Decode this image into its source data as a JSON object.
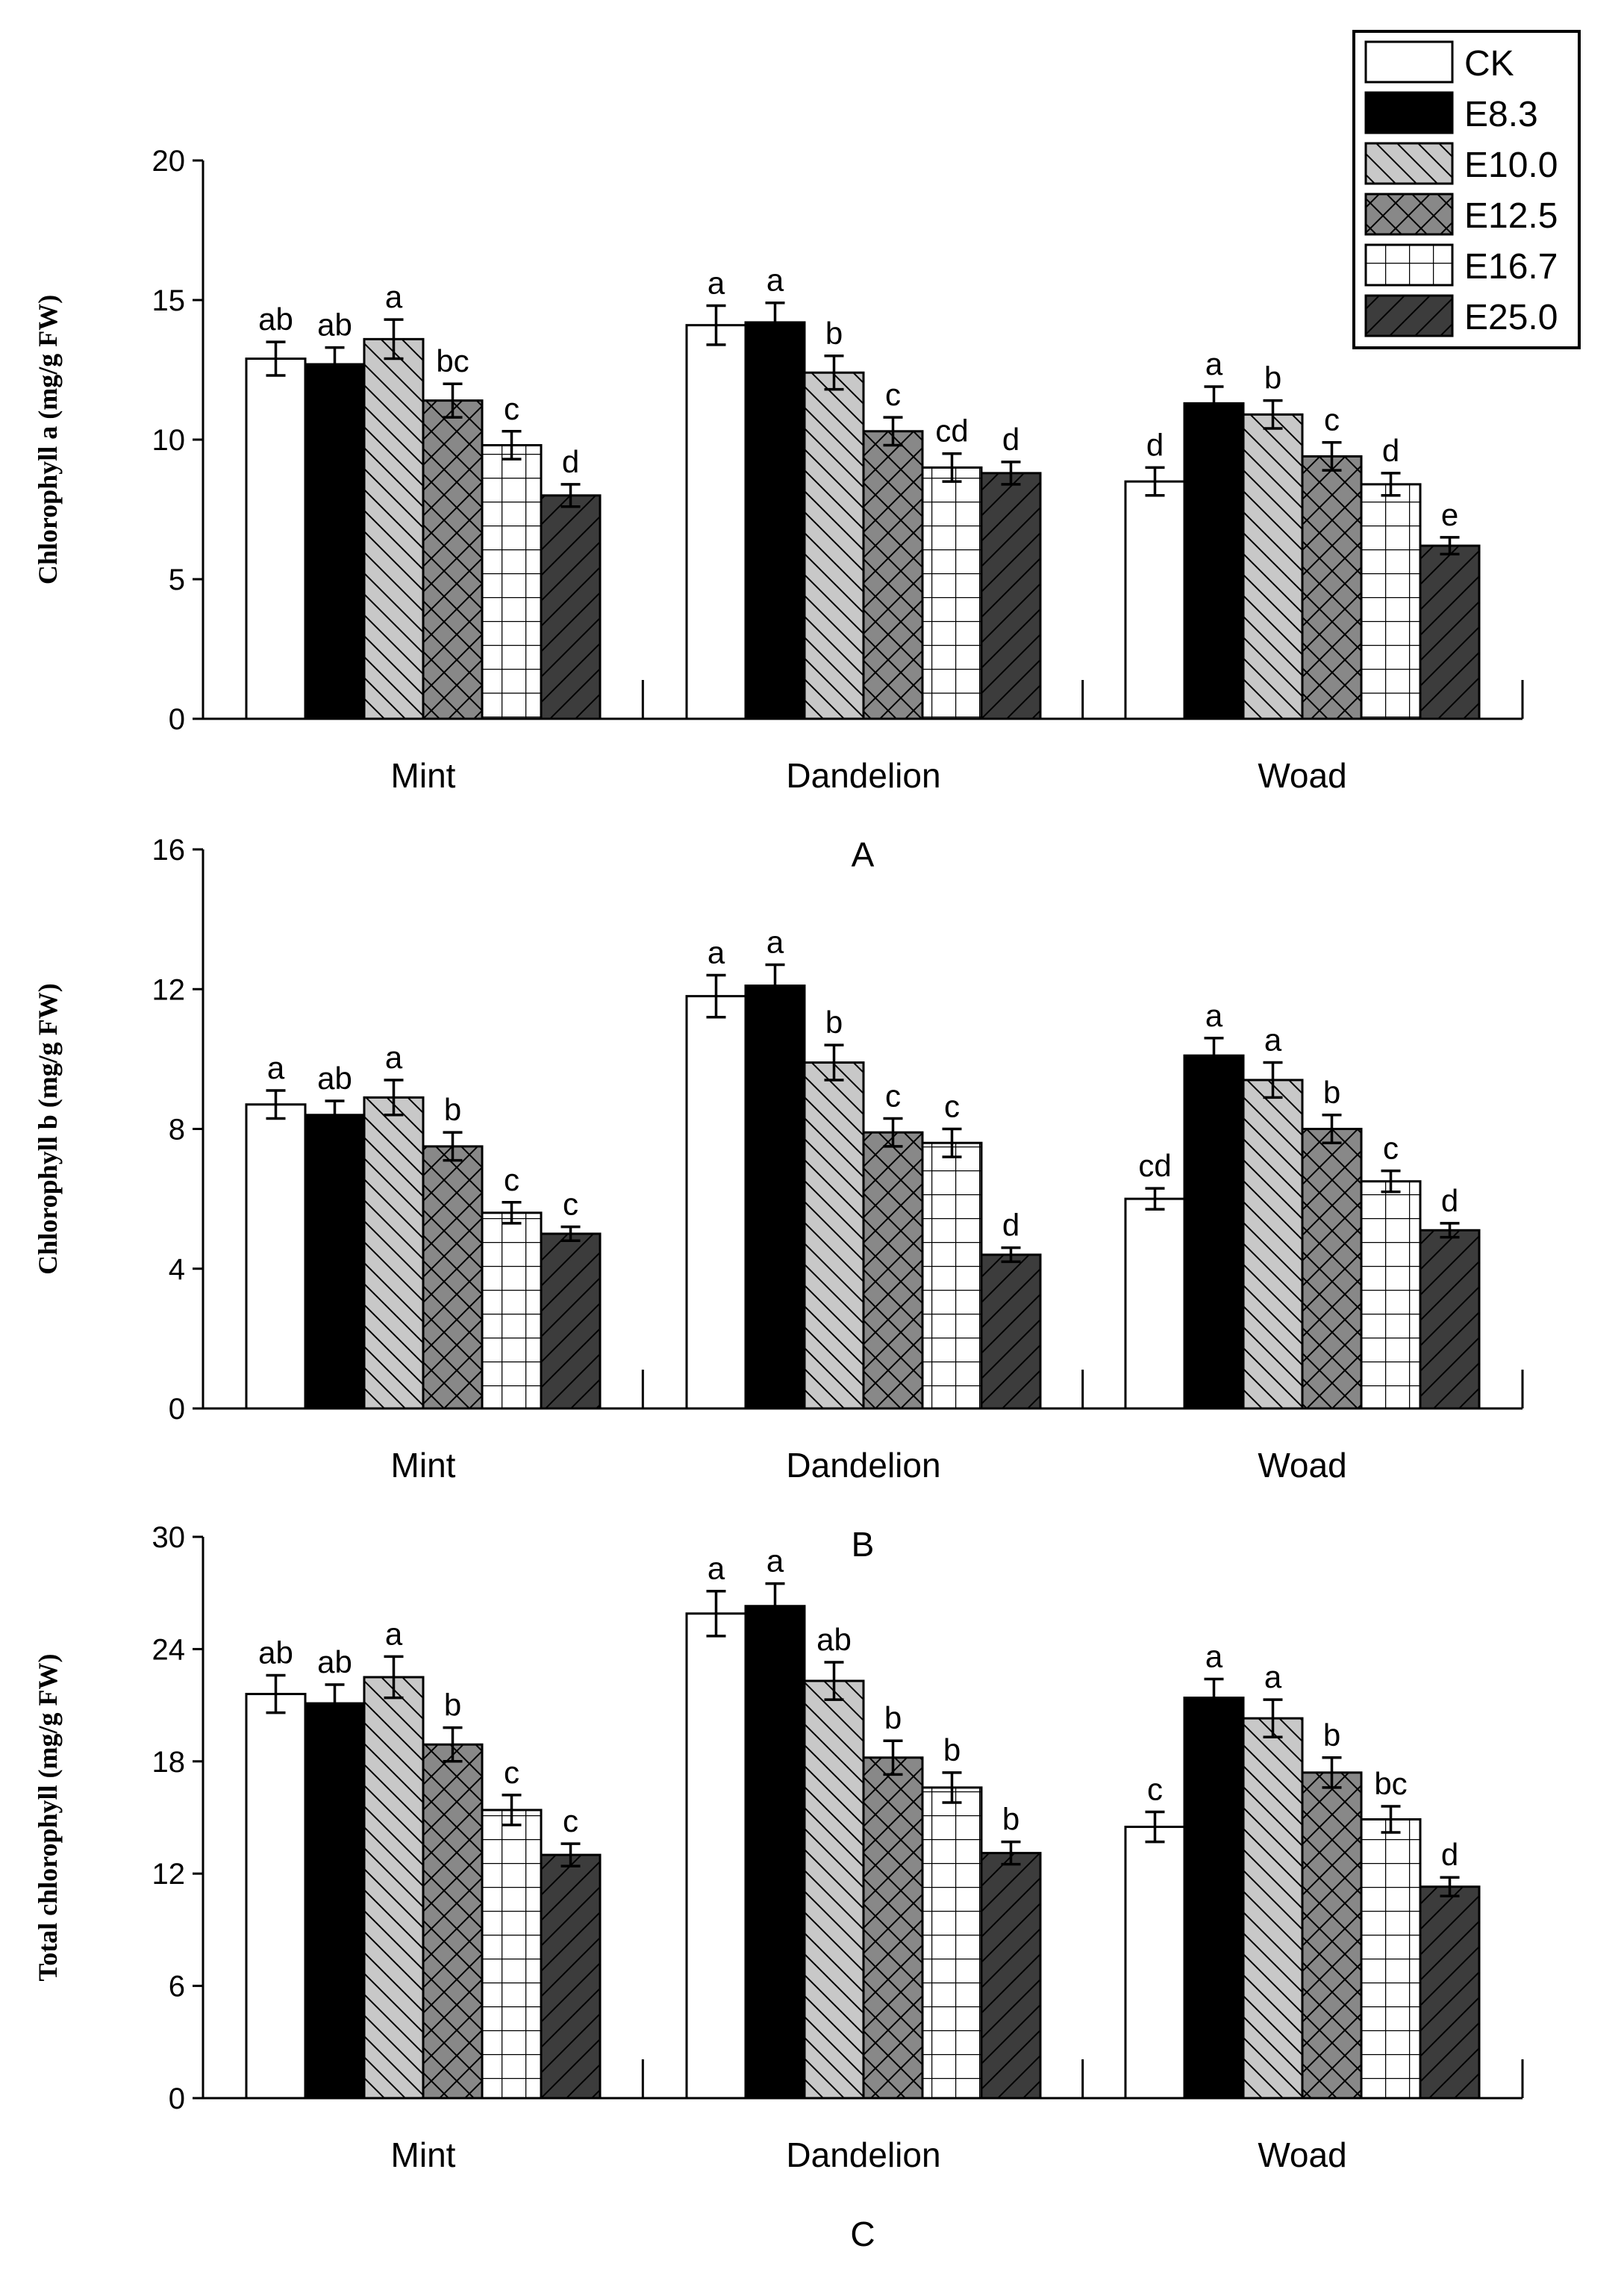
{
  "colors": {
    "ink": "#000000",
    "paper": "#ffffff",
    "light_gray": "#c8c8c8",
    "mid_gray": "#888888",
    "dark_gray": "#3c3c3c"
  },
  "legend": [
    {
      "label": "CK",
      "pattern": "white"
    },
    {
      "label": "E8.3",
      "pattern": "black"
    },
    {
      "label": "E10.0",
      "pattern": "back-diagonal-light"
    },
    {
      "label": "E12.5",
      "pattern": "crosshatch-mid"
    },
    {
      "label": "E16.7",
      "pattern": "grid-white"
    },
    {
      "label": "E25.0",
      "pattern": "forward-diagonal-dark"
    }
  ],
  "chart_data": [
    {
      "type": "bar",
      "panel_label": "A",
      "ylabel": "Chlorophyll a (mg/g FW)",
      "ylim": [
        0,
        20
      ],
      "yticks": [
        "0",
        "5",
        "10",
        "15",
        "20"
      ],
      "categories": [
        "Mint",
        "Dandelion",
        "Woad"
      ],
      "series": [
        {
          "name": "CK",
          "values": [
            12.9,
            14.1,
            8.5
          ],
          "errors": [
            0.6,
            0.7,
            0.5
          ],
          "letters": [
            "ab",
            "a",
            "d"
          ]
        },
        {
          "name": "E8.3",
          "values": [
            12.7,
            14.2,
            11.3
          ],
          "errors": [
            0.6,
            0.7,
            0.6
          ],
          "letters": [
            "ab",
            "a",
            "a"
          ]
        },
        {
          "name": "E10.0",
          "values": [
            13.6,
            12.4,
            10.9
          ],
          "errors": [
            0.7,
            0.6,
            0.5
          ],
          "letters": [
            "a",
            "b",
            "b"
          ]
        },
        {
          "name": "E12.5",
          "values": [
            11.4,
            10.3,
            9.4
          ],
          "errors": [
            0.6,
            0.5,
            0.5
          ],
          "letters": [
            "bc",
            "c",
            "c"
          ]
        },
        {
          "name": "E16.7",
          "values": [
            9.8,
            9.0,
            8.4
          ],
          "errors": [
            0.5,
            0.5,
            0.4
          ],
          "letters": [
            "c",
            "cd",
            "d"
          ]
        },
        {
          "name": "E25.0",
          "values": [
            8.0,
            8.8,
            6.2
          ],
          "errors": [
            0.4,
            0.4,
            0.3
          ],
          "letters": [
            "d",
            "d",
            "e"
          ]
        }
      ]
    },
    {
      "type": "bar",
      "panel_label": "B",
      "ylabel": "Chlorophyll b (mg/g FW)",
      "ylim": [
        0,
        16
      ],
      "yticks": [
        "0",
        "4",
        "8",
        "12",
        "16"
      ],
      "categories": [
        "Mint",
        "Dandelion",
        "Woad"
      ],
      "series": [
        {
          "name": "CK",
          "values": [
            8.7,
            11.8,
            6.0
          ],
          "errors": [
            0.4,
            0.6,
            0.3
          ],
          "letters": [
            "a",
            "a",
            "cd"
          ]
        },
        {
          "name": "E8.3",
          "values": [
            8.4,
            12.1,
            10.1
          ],
          "errors": [
            0.4,
            0.6,
            0.5
          ],
          "letters": [
            "ab",
            "a",
            "a"
          ]
        },
        {
          "name": "E10.0",
          "values": [
            8.9,
            9.9,
            9.4
          ],
          "errors": [
            0.5,
            0.5,
            0.5
          ],
          "letters": [
            "a",
            "b",
            "a"
          ]
        },
        {
          "name": "E12.5",
          "values": [
            7.5,
            7.9,
            8.0
          ],
          "errors": [
            0.4,
            0.4,
            0.4
          ],
          "letters": [
            "b",
            "c",
            "b"
          ]
        },
        {
          "name": "E16.7",
          "values": [
            5.6,
            7.6,
            6.5
          ],
          "errors": [
            0.3,
            0.4,
            0.3
          ],
          "letters": [
            "c",
            "c",
            "c"
          ]
        },
        {
          "name": "E25.0",
          "values": [
            5.0,
            4.4,
            5.1
          ],
          "errors": [
            0.2,
            0.2,
            0.2
          ],
          "letters": [
            "c",
            "d",
            "d"
          ]
        }
      ]
    },
    {
      "type": "bar",
      "panel_label": "C",
      "ylabel": "Total chlorophyll (mg/g FW)",
      "ylim": [
        0,
        30
      ],
      "yticks": [
        "0",
        "6",
        "12",
        "18",
        "24",
        "30"
      ],
      "categories": [
        "Mint",
        "Dandelion",
        "Woad"
      ],
      "series": [
        {
          "name": "CK",
          "values": [
            21.6,
            25.9,
            14.5
          ],
          "errors": [
            1.0,
            1.2,
            0.8
          ],
          "letters": [
            "ab",
            "a",
            "c"
          ]
        },
        {
          "name": "E8.3",
          "values": [
            21.1,
            26.3,
            21.4
          ],
          "errors": [
            1.0,
            1.2,
            1.0
          ],
          "letters": [
            "ab",
            "a",
            "a"
          ]
        },
        {
          "name": "E10.0",
          "values": [
            22.5,
            22.3,
            20.3
          ],
          "errors": [
            1.1,
            1.0,
            1.0
          ],
          "letters": [
            "a",
            "ab",
            "a"
          ]
        },
        {
          "name": "E12.5",
          "values": [
            18.9,
            18.2,
            17.4
          ],
          "errors": [
            0.9,
            0.9,
            0.8
          ],
          "letters": [
            "b",
            "b",
            "b"
          ]
        },
        {
          "name": "E16.7",
          "values": [
            15.4,
            16.6,
            14.9
          ],
          "errors": [
            0.8,
            0.8,
            0.7
          ],
          "letters": [
            "c",
            "b",
            "bc"
          ]
        },
        {
          "name": "E25.0",
          "values": [
            13.0,
            13.1,
            11.3
          ],
          "errors": [
            0.6,
            0.6,
            0.5
          ],
          "letters": [
            "c",
            "b",
            "d"
          ]
        }
      ]
    }
  ]
}
